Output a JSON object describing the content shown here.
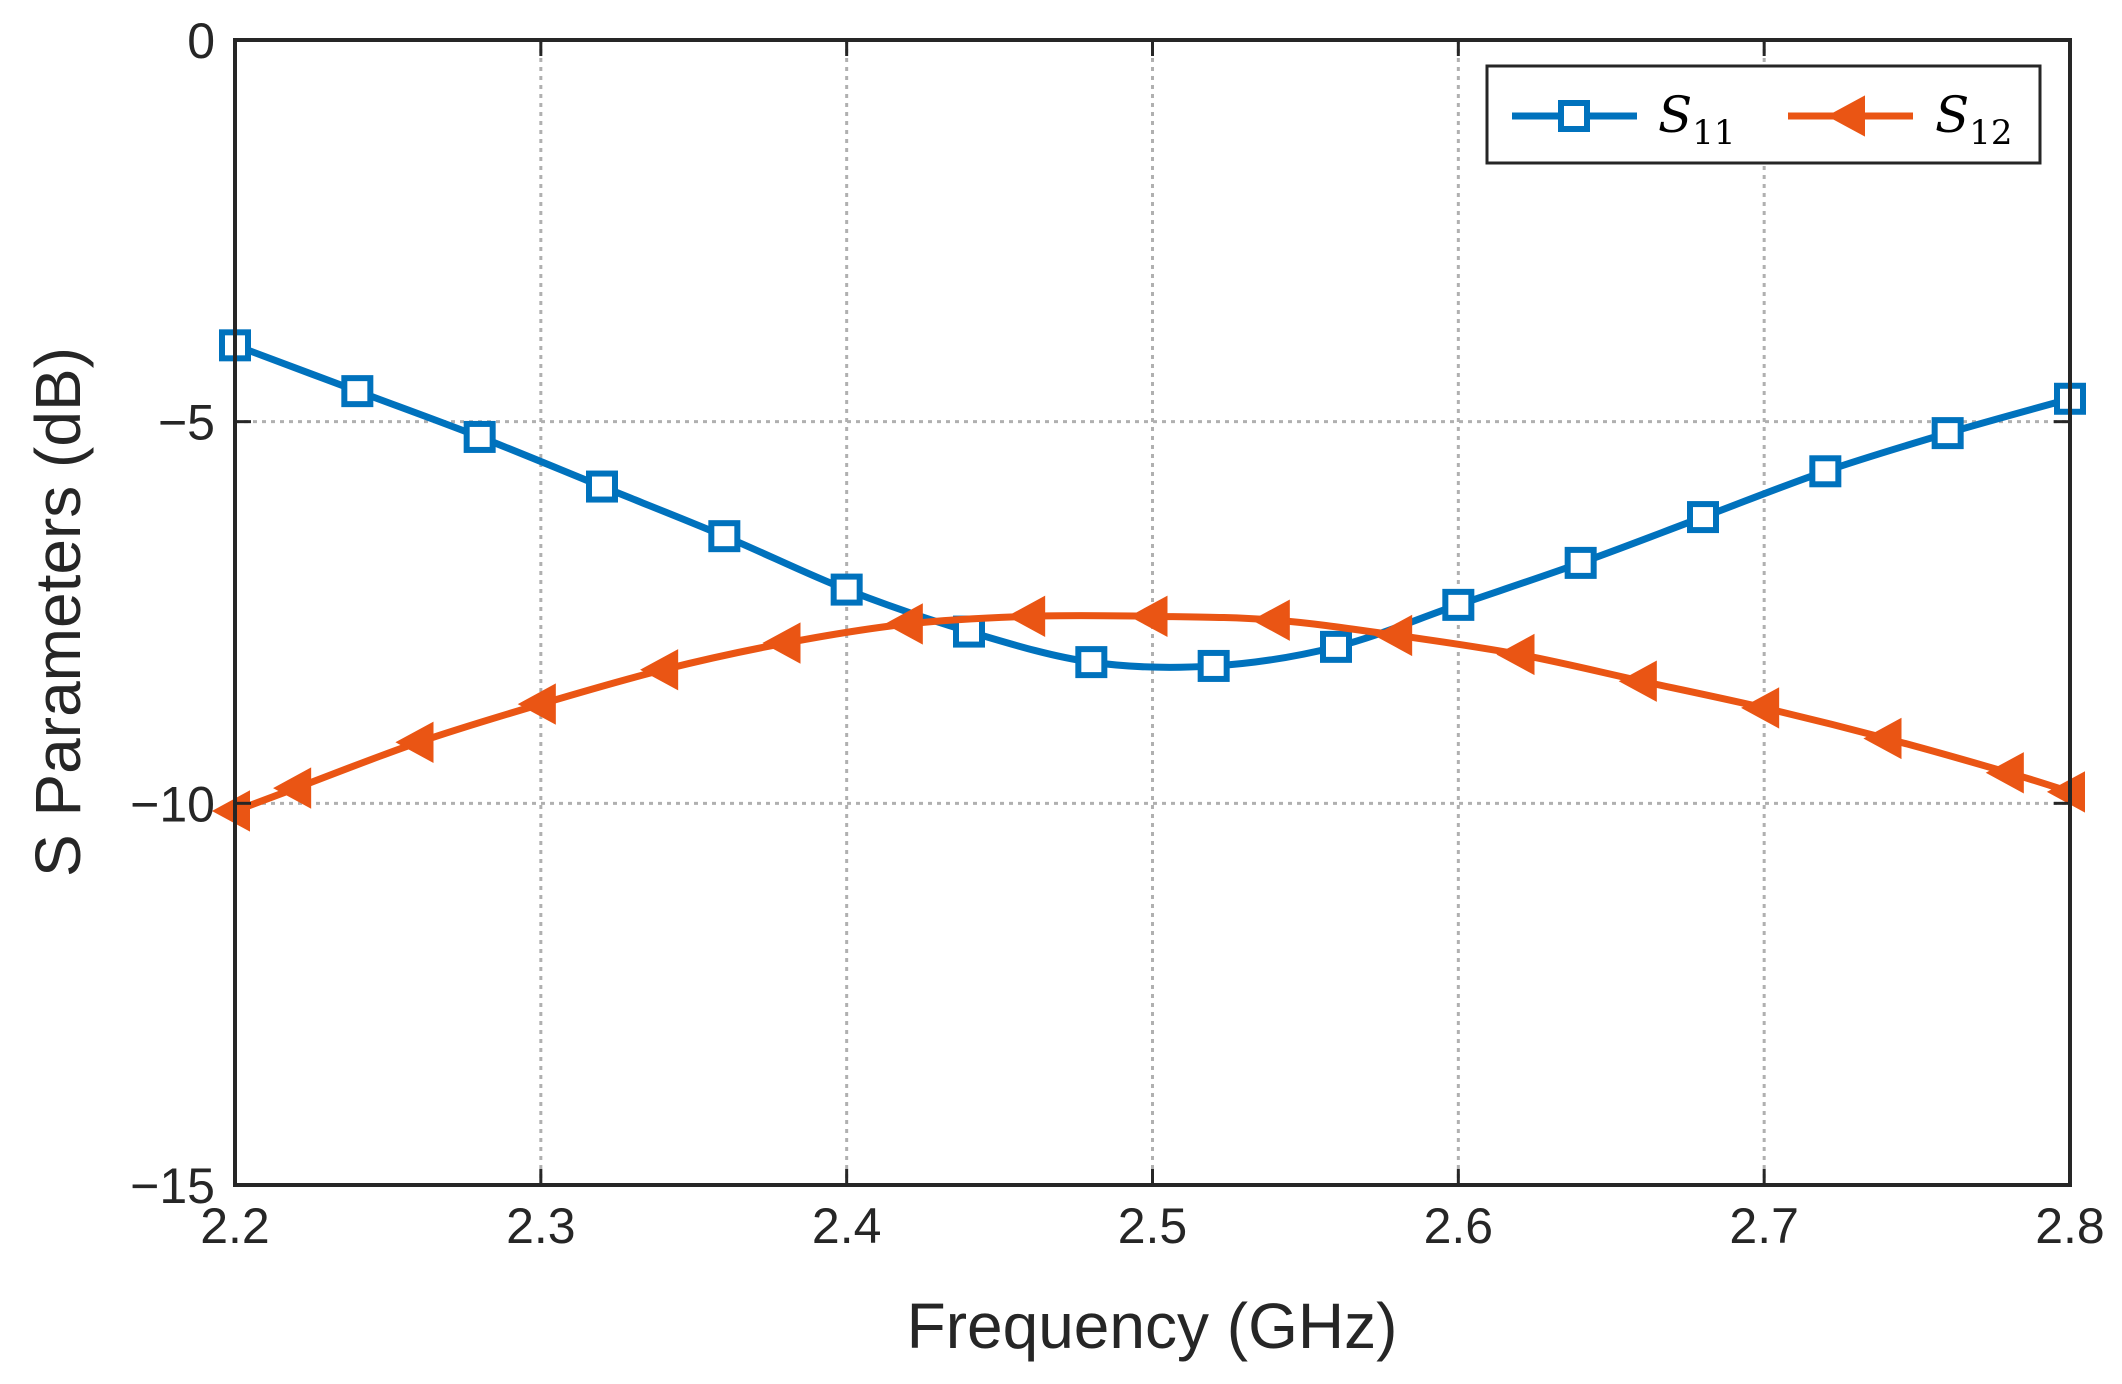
{
  "chart_data": {
    "type": "line",
    "xlabel": "Frequency (GHz)",
    "ylabel": "S Parameters (dB)",
    "xlim": [
      2.2,
      2.8
    ],
    "ylim": [
      -15,
      0
    ],
    "xticks": [
      2.2,
      2.3,
      2.4,
      2.5,
      2.6,
      2.7,
      2.8
    ],
    "xtick_labels": [
      "2.2",
      "2.3",
      "2.4",
      "2.5",
      "2.6",
      "2.7",
      "2.8"
    ],
    "yticks": [
      0,
      -5,
      -10,
      -15
    ],
    "ytick_labels": [
      "0",
      "−5",
      "−10",
      "−15"
    ],
    "grid": true,
    "legend_position": "top-right",
    "series": [
      {
        "name": "S11",
        "legend_main": "S",
        "legend_sub": "11",
        "color": "#0072BD",
        "marker": "square",
        "x": [
          2.2,
          2.24,
          2.28,
          2.32,
          2.36,
          2.4,
          2.44,
          2.48,
          2.52,
          2.56,
          2.6,
          2.64,
          2.68,
          2.72,
          2.76,
          2.8
        ],
        "y": [
          -4.0,
          -4.6,
          -5.2,
          -5.85,
          -6.5,
          -7.2,
          -7.75,
          -8.15,
          -8.2,
          -7.95,
          -7.4,
          -6.85,
          -6.25,
          -5.65,
          -5.15,
          -4.7
        ]
      },
      {
        "name": "S12",
        "legend_main": "S",
        "legend_sub": "12",
        "color": "#EA5514",
        "marker": "triangle-left",
        "x": [
          2.2,
          2.22,
          2.26,
          2.3,
          2.34,
          2.38,
          2.42,
          2.46,
          2.5,
          2.54,
          2.58,
          2.62,
          2.66,
          2.7,
          2.74,
          2.78,
          2.8
        ],
        "y": [
          -10.1,
          -9.8,
          -9.2,
          -8.7,
          -8.25,
          -7.9,
          -7.65,
          -7.55,
          -7.55,
          -7.6,
          -7.8,
          -8.05,
          -8.4,
          -8.75,
          -9.15,
          -9.6,
          -9.85
        ]
      }
    ]
  }
}
